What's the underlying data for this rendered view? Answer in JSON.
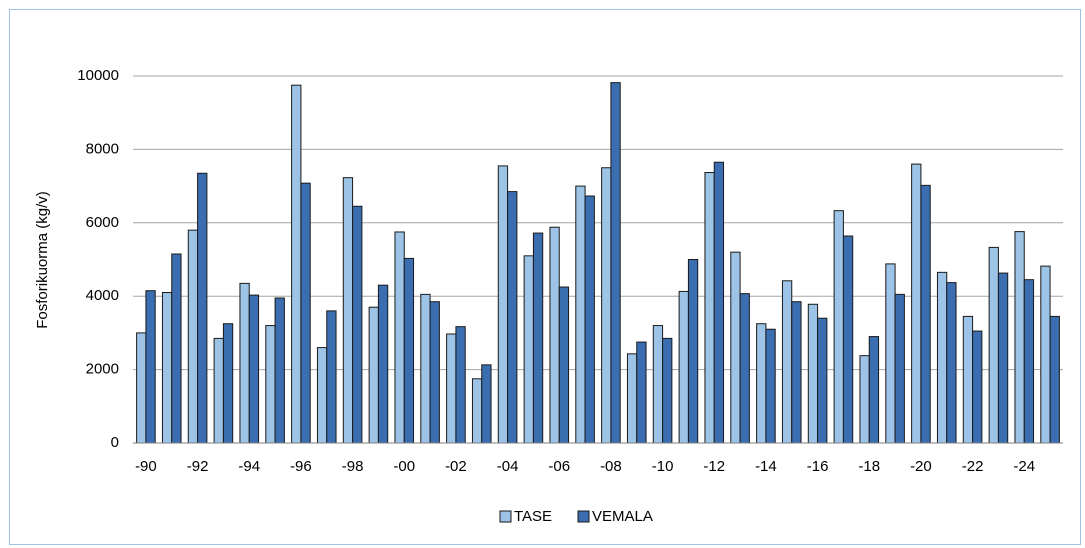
{
  "chart_data": {
    "type": "bar",
    "y_label": "Fosforikuorma (kg/v)",
    "categories": [
      "-90",
      null,
      "-92",
      null,
      "-94",
      null,
      "-96",
      null,
      "-98",
      null,
      "-00",
      null,
      "-02",
      null,
      "-04",
      null,
      "-06",
      null,
      "-08",
      null,
      "-10",
      null,
      "-12",
      null,
      "-14",
      null,
      "-16",
      null,
      "-18",
      null,
      "-20",
      null,
      "-22",
      null,
      "-24",
      null
    ],
    "series": [
      {
        "name": "TASE",
        "color": "#9dc3e6",
        "values": [
          3000,
          4100,
          5800,
          2850,
          4350,
          3200,
          9750,
          2600,
          7230,
          3700,
          5750,
          4050,
          2970,
          1750,
          7550,
          5100,
          5880,
          7000,
          7500,
          2430,
          3200,
          4130,
          7370,
          5200,
          3250,
          4420,
          3780,
          6330,
          2380,
          4880,
          7600,
          4650,
          3450,
          5330,
          5760,
          4820
        ]
      },
      {
        "name": "VEMALA",
        "color": "#3a6eb0",
        "values": [
          4150,
          5150,
          7350,
          3250,
          4030,
          3950,
          7080,
          3600,
          6450,
          4300,
          5030,
          3850,
          3170,
          2130,
          6850,
          5720,
          4250,
          6730,
          9820,
          2750,
          2850,
          5000,
          7650,
          4070,
          3100,
          3850,
          3400,
          5640,
          2900,
          4050,
          7020,
          4370,
          3050,
          4630,
          4450,
          3450
        ]
      }
    ],
    "ylim": [
      0,
      10000
    ],
    "yticks": [
      0,
      2000,
      4000,
      6000,
      8000,
      10000
    ],
    "grid": true,
    "legend": "bottom"
  }
}
